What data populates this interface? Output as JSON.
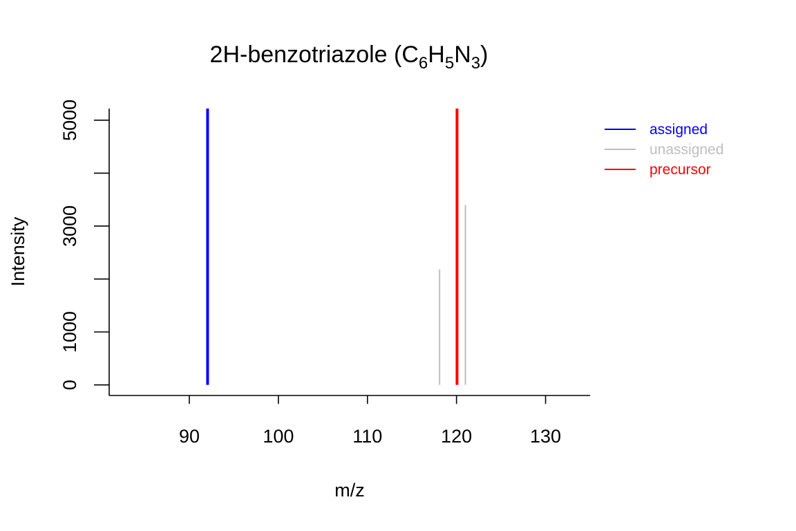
{
  "chart_data": {
    "type": "bar",
    "title": {
      "prefix": "2H-benzotriazole (C",
      "parts": [
        {
          "text": "6",
          "sub": true
        },
        {
          "text": "H",
          "sub": false
        },
        {
          "text": "5",
          "sub": true
        },
        {
          "text": "N",
          "sub": false
        },
        {
          "text": "3",
          "sub": true
        },
        {
          "text": ")",
          "sub": false
        }
      ]
    },
    "xlabel": "m/z",
    "ylabel": "Intensity",
    "xlim": [
      81,
      135
    ],
    "ylim": [
      -200,
      5220
    ],
    "x_ticks": [
      90,
      100,
      110,
      120,
      130
    ],
    "y_ticks": [
      0,
      1000,
      2000,
      3000,
      4000,
      5000
    ],
    "y_tick_labels": [
      "0",
      "1000",
      "",
      "3000",
      "",
      "5000"
    ],
    "series": [
      {
        "name": "assigned",
        "color": "#0000ff",
        "points": [
          {
            "x": 92.05,
            "y": 5220
          }
        ]
      },
      {
        "name": "unassigned",
        "color": "#bebebe",
        "points": [
          {
            "x": 118.1,
            "y": 2180
          },
          {
            "x": 121.0,
            "y": 3400
          }
        ]
      },
      {
        "name": "precursor",
        "color": "#ff0000",
        "points": [
          {
            "x": 120.06,
            "y": 5220
          }
        ]
      }
    ],
    "legend": {
      "position": "top-right",
      "entries": [
        "assigned",
        "unassigned",
        "precursor"
      ]
    }
  }
}
